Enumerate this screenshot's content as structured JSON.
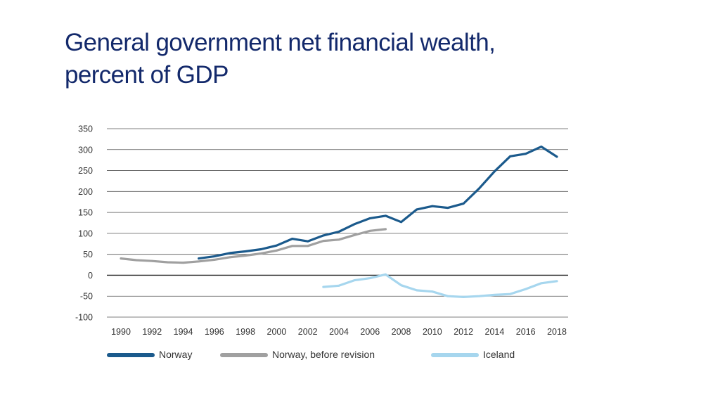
{
  "slide": {
    "title_line1": "General government net financial wealth,",
    "title_line2": "percent of GDP"
  },
  "chart_data": {
    "type": "line",
    "title": "General government net financial wealth, percent of GDP",
    "xlabel": "",
    "ylabel": "",
    "xlim": [
      1990,
      2018
    ],
    "ylim": [
      -100,
      350
    ],
    "x_ticks": [
      "1990",
      "1992",
      "1994",
      "1996",
      "1998",
      "2000",
      "2002",
      "2004",
      "2006",
      "2008",
      "2010",
      "2012",
      "2014",
      "2016",
      "2018"
    ],
    "y_ticks": [
      "350",
      "300",
      "250",
      "200",
      "150",
      "100",
      "50",
      "0",
      "-50",
      "-100"
    ],
    "grid": true,
    "legend_position": "bottom",
    "series": [
      {
        "name": "Norway",
        "color": "#1b5a8c",
        "x": [
          1995,
          1996,
          1997,
          1998,
          1999,
          2000,
          2001,
          2002,
          2003,
          2004,
          2005,
          2006,
          2007,
          2008,
          2009,
          2010,
          2011,
          2012,
          2013,
          2014,
          2015,
          2016,
          2017,
          2018
        ],
        "values": [
          40,
          45,
          53,
          57,
          62,
          71,
          87,
          81,
          95,
          104,
          122,
          136,
          142,
          127,
          157,
          165,
          161,
          171,
          207,
          248,
          284,
          290,
          307,
          283
        ]
      },
      {
        "name": "Norway, before revision",
        "color": "#a0a0a0",
        "x": [
          1990,
          1991,
          1992,
          1993,
          1994,
          1995,
          1996,
          1997,
          1998,
          1999,
          2000,
          2001,
          2002,
          2003,
          2004,
          2005,
          2006,
          2007
        ],
        "values": [
          40,
          36,
          34,
          31,
          30,
          33,
          37,
          43,
          47,
          52,
          59,
          70,
          70,
          82,
          85,
          96,
          106,
          110
        ]
      },
      {
        "name": "Iceland",
        "color": "#a6d6ee",
        "x": [
          2003,
          2004,
          2005,
          2006,
          2007,
          2008,
          2009,
          2010,
          2011,
          2012,
          2013,
          2014,
          2015,
          2016,
          2017,
          2018
        ],
        "values": [
          -28,
          -25,
          -12,
          -7,
          2,
          -24,
          -36,
          -39,
          -50,
          -52,
          -50,
          -47,
          -45,
          -33,
          -19,
          -14
        ]
      }
    ]
  }
}
